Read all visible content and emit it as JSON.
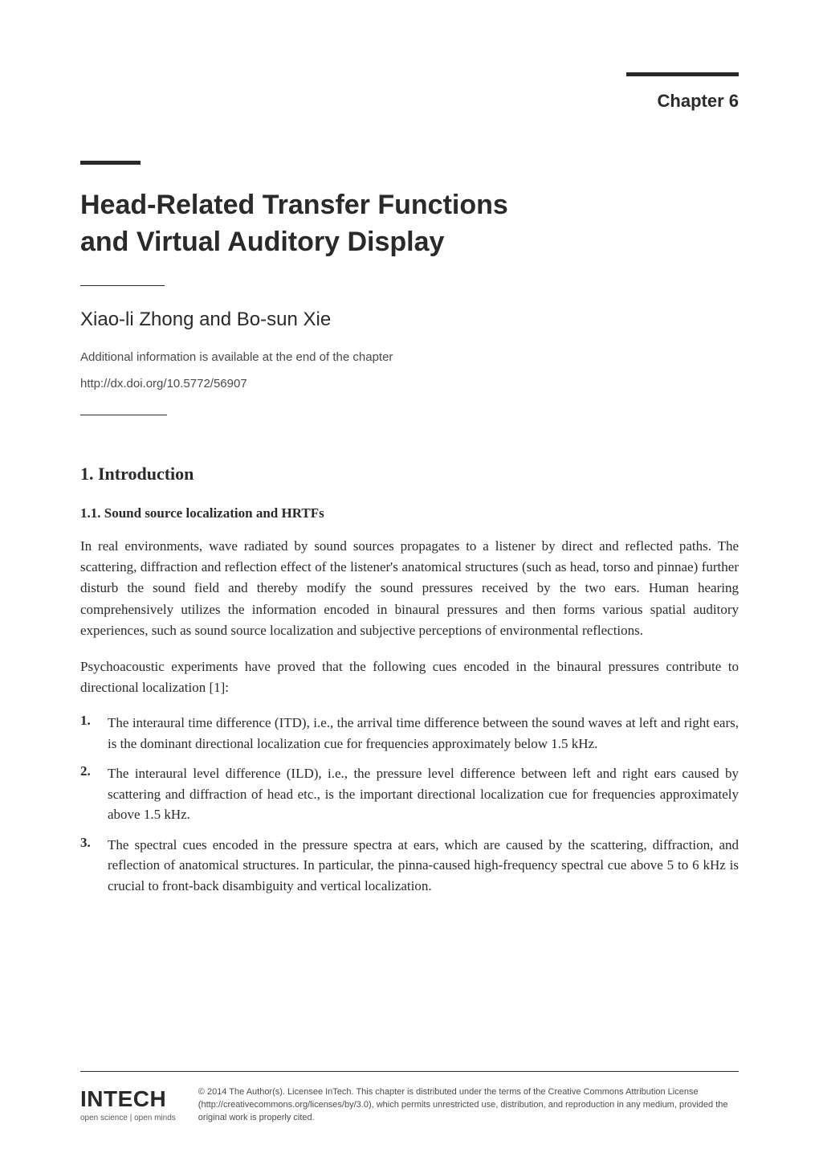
{
  "chapter": {
    "label": "Chapter 6"
  },
  "title": {
    "line1": "Head-Related Transfer Functions",
    "line2": "and Virtual Auditory Display"
  },
  "authors": "Xiao-li Zhong and Bo-sun Xie",
  "additionalInfo": "Additional information is available at the end of the chapter",
  "doi": "http://dx.doi.org/10.5772/56907",
  "section": {
    "heading": "1. Introduction",
    "subheading": "1.1. Sound source localization and HRTFs",
    "paragraph1": "In real environments, wave radiated by sound sources propagates to a listener by direct and reflected paths. The scattering, diffraction and reflection effect of the listener's anatomical structures (such as head, torso and pinnae) further disturb the sound field and thereby modify the sound pressures received by the two ears. Human hearing comprehensively utilizes the information encoded in binaural pressures and then forms various spatial auditory experiences, such as sound source localization and subjective perceptions of environmental reflections.",
    "paragraph2": "Psychoacoustic experiments have proved that the following cues encoded in the binaural pressures contribute to directional localization [1]:",
    "list": [
      {
        "number": "1.",
        "text": "The interaural time difference (ITD), i.e., the arrival time difference between the sound waves at left and right ears, is the dominant directional localization cue for frequencies approximately below 1.5 kHz."
      },
      {
        "number": "2.",
        "text": "The interaural level difference (ILD), i.e., the pressure level difference between left and right ears caused by scattering and diffraction of head etc., is the important directional localization cue for frequencies approximately above 1.5 kHz."
      },
      {
        "number": "3.",
        "text": "The spectral cues encoded in the pressure spectra at ears, which are caused by the scattering, diffraction, and reflection of anatomical structures. In particular, the pinna-caused high-frequency spectral cue above 5 to 6 kHz is crucial to front-back disambiguity and vertical localization."
      }
    ]
  },
  "footer": {
    "logo": "INTECH",
    "tagline": "open science | open minds",
    "copyright": "© 2014 The Author(s). Licensee InTech. This chapter is distributed under the terms of the Creative Commons Attribution License (http://creativecommons.org/licenses/by/3.0), which permits unrestricted use, distribution, and reproduction in any medium, provided the original work is properly cited."
  },
  "styling": {
    "background_color": "#ffffff",
    "text_color": "#2a2a2a",
    "secondary_text_color": "#4a4a4a",
    "marker_line_color": "#2a2a2a",
    "title_fontsize": 34,
    "body_fontsize": 17,
    "chapter_label_fontsize": 22,
    "author_fontsize": 24
  }
}
